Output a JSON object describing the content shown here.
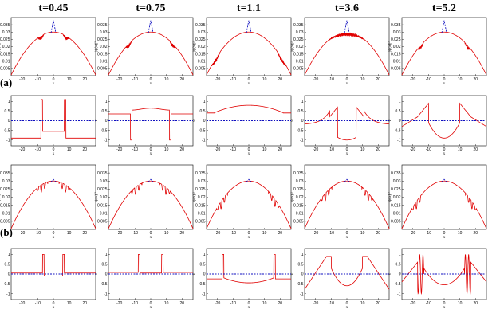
{
  "figure": {
    "column_titles": [
      "t=0.45",
      "t=0.75",
      "t=1.1",
      "t=3.6",
      "t=5.2"
    ],
    "row_group_labels": [
      "(a)",
      "(b)"
    ],
    "colors": {
      "solution": "#e00000",
      "reference": "#1010c0"
    }
  },
  "chart_data": [
    {
      "type": "line",
      "row": "density-a",
      "ylabel": "|ψ(x)|²",
      "xlabel": "x",
      "xticks": [
        -20,
        -10,
        0,
        10,
        20
      ],
      "xlim": [
        -27,
        27
      ],
      "yticks": [
        0.005,
        0.01,
        0.015,
        0.02,
        0.025,
        0.03,
        0.035
      ],
      "ylim": [
        0.0,
        0.04
      ],
      "envelope_peak": 0.0295,
      "reference_spike": 0.038,
      "oscillation_regions_per_t": [
        [
          -10,
          -6,
          6,
          10
        ],
        [
          -16,
          -12,
          12,
          16
        ],
        [
          -24,
          -18,
          18,
          24
        ],
        [
          -12,
          12
        ],
        [
          -17,
          -13,
          13,
          17
        ]
      ]
    },
    {
      "type": "line",
      "row": "phase-a",
      "ylabel": "v",
      "xlabel": "x",
      "xticks": [
        -20,
        -10,
        0,
        10,
        20
      ],
      "xlim": [
        -27,
        27
      ],
      "yticks": [
        -1,
        -0.5,
        0,
        0.5,
        1
      ],
      "ylim": [
        -1.3,
        1.3
      ]
    },
    {
      "type": "line",
      "row": "density-b",
      "ylabel": "|ψ(x)|²",
      "xlabel": "x",
      "xticks": [
        -20,
        -10,
        0,
        10,
        20
      ],
      "xlim": [
        -27,
        27
      ],
      "yticks": [
        0.005,
        0.01,
        0.015,
        0.02,
        0.025,
        0.03,
        0.035
      ],
      "ylim": [
        0.0,
        0.04
      ],
      "envelope_peak": 0.0295
    },
    {
      "type": "line",
      "row": "phase-b",
      "ylabel": "v",
      "xlabel": "x",
      "xticks": [
        -20,
        -10,
        0,
        10,
        20
      ],
      "xlim": [
        -27,
        27
      ],
      "yticks": [
        -1,
        -0.5,
        0,
        0.5,
        1
      ],
      "ylim": [
        -1.3,
        1.3
      ]
    }
  ]
}
